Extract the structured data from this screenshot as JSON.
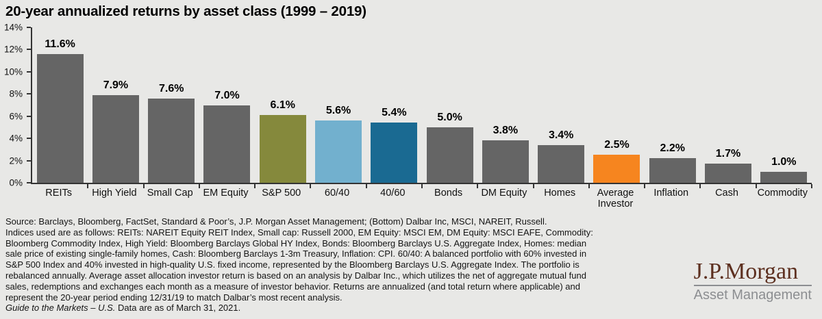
{
  "chart_data": {
    "type": "bar",
    "title": "20-year annualized returns by asset class (1999 – 2019)",
    "categories": [
      "REITs",
      "High Yield",
      "Small Cap",
      "EM Equity",
      "S&P 500",
      "60/40",
      "40/60",
      "Bonds",
      "DM Equity",
      "Homes",
      "Average Investor",
      "Inflation",
      "Cash",
      "Commodity"
    ],
    "values": [
      11.6,
      7.9,
      7.6,
      7.0,
      6.1,
      5.6,
      5.4,
      5.0,
      3.8,
      3.4,
      2.5,
      2.2,
      1.7,
      1.0
    ],
    "value_labels": [
      "11.6%",
      "7.9%",
      "7.6%",
      "7.0%",
      "6.1%",
      "5.6%",
      "5.4%",
      "5.0%",
      "3.8%",
      "3.4%",
      "2.5%",
      "2.2%",
      "1.7%",
      "1.0%"
    ],
    "bar_color_keys": [
      "gray",
      "gray",
      "gray",
      "gray",
      "olive",
      "lightblue",
      "darkblue",
      "gray",
      "gray",
      "gray",
      "orange",
      "gray",
      "gray",
      "gray"
    ],
    "palette": {
      "gray": "#656565",
      "olive": "#85893c",
      "lightblue": "#72b0ce",
      "darkblue": "#1a6a92",
      "orange": "#f6851f"
    },
    "xlabel": "",
    "ylabel": "",
    "ylim": [
      0,
      14
    ],
    "ytick_labels": [
      "0%",
      "2%",
      "4%",
      "6%",
      "8%",
      "10%",
      "12%",
      "14%"
    ],
    "grid": false,
    "legend": "none"
  },
  "footnote": {
    "lines": [
      "Source: Barclays, Bloomberg, FactSet, Standard & Poor’s, J.P. Morgan Asset Management; (Bottom) Dalbar Inc, MSCI, NAREIT, Russell.",
      "Indices used are as follows: REITs: NAREIT Equity REIT Index, Small cap: Russell 2000, EM Equity: MSCI EM, DM Equity: MSCI EAFE, Commodity:",
      "Bloomberg Commodity Index, High Yield: Bloomberg Barclays Global HY Index, Bonds: Bloomberg Barclays U.S. Aggregate Index, Homes: median",
      "sale price of existing single-family homes, Cash: Bloomberg Barclays 1-3m Treasury, Inflation: CPI. 60/40: A balanced portfolio with 60% invested in",
      "S&P 500 Index and 40% invested in high-quality U.S. fixed income, represented by the Bloomberg Barclays U.S. Aggregate Index. The portfolio is",
      "rebalanced annually. Average asset allocation investor return is based on an analysis by Dalbar Inc., which utilizes the net of aggregate mutual fund",
      "sales, redemptions and exchanges each month as a measure of investor behavior. Returns are annualized (and total return where applicable) and",
      "represent the 20-year period ending 12/31/19 to match Dalbar’s most recent analysis."
    ],
    "italic_text": "Guide to the Markets – U.S.",
    "regular_text": " Data are as of March 31, 2021."
  },
  "logo": {
    "brand": "J.P.Morgan",
    "division": "Asset Management"
  },
  "colors": {
    "background": "#e8e8e6",
    "axis": "#333333",
    "title_text": "#000000",
    "footnote_text": "#141414",
    "logo_brown": "#5d3020",
    "logo_gray": "#8c8e91"
  }
}
